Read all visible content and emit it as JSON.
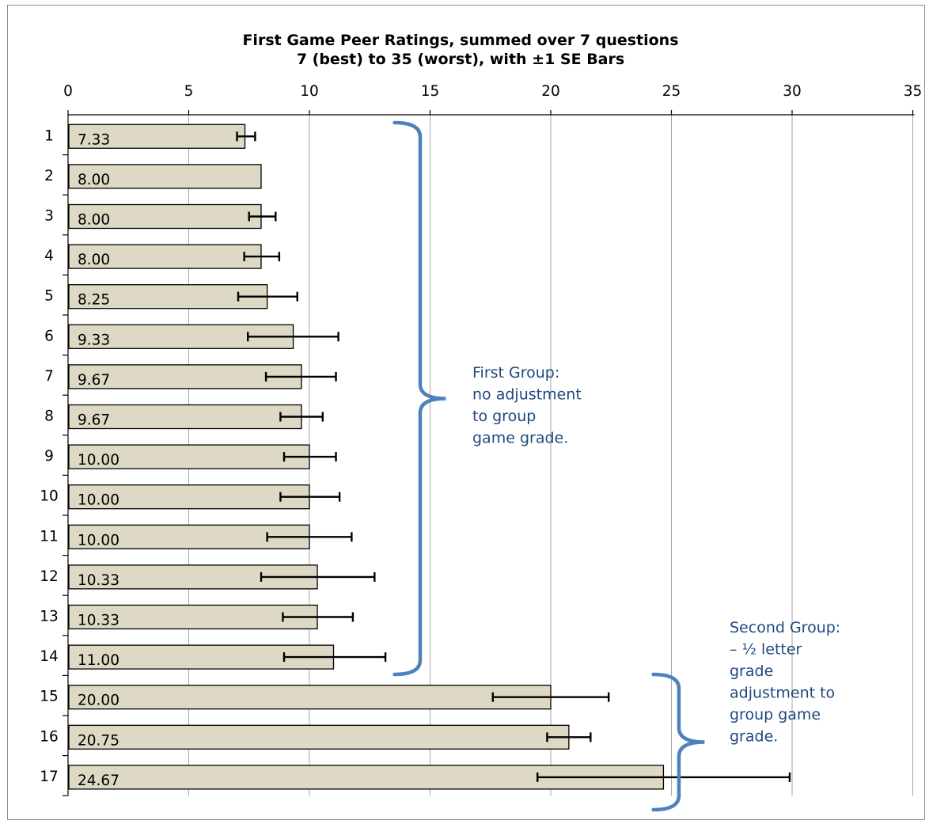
{
  "chart_data": {
    "type": "bar",
    "orientation": "horizontal",
    "title": "First Game Peer Ratings, summed over 7 questions",
    "subtitle": "7 (best) to 35 (worst), with ±1 SE Bars",
    "xlim": [
      0,
      35
    ],
    "xticks": [
      "0",
      "5",
      "10",
      "15",
      "20",
      "25",
      "30",
      "35"
    ],
    "x_axis_position": "top",
    "grid": true,
    "categories": [
      "1",
      "2",
      "3",
      "4",
      "5",
      "6",
      "7",
      "8",
      "9",
      "10",
      "11",
      "12",
      "13",
      "14",
      "15",
      "16",
      "17"
    ],
    "values": [
      7.33,
      8.0,
      8.0,
      8.0,
      8.25,
      9.33,
      9.67,
      9.67,
      10.0,
      10.0,
      10.0,
      10.33,
      10.33,
      11.0,
      20.0,
      20.75,
      24.67
    ],
    "value_labels": [
      "7.33",
      "8.00",
      "8.00",
      "8.00",
      "8.25",
      "9.33",
      "9.67",
      "9.67",
      "10.00",
      "10.00",
      "10.00",
      "10.33",
      "10.33",
      "11.00",
      "20.00",
      "20.75",
      "24.67"
    ],
    "error_bars": [
      [
        7.0,
        7.75
      ],
      null,
      [
        7.5,
        8.6
      ],
      [
        7.3,
        8.75
      ],
      [
        7.05,
        9.5
      ],
      [
        7.45,
        11.2
      ],
      [
        8.2,
        11.1
      ],
      [
        8.8,
        10.55
      ],
      [
        8.95,
        11.1
      ],
      [
        8.8,
        11.25
      ],
      [
        8.25,
        11.75
      ],
      [
        8.0,
        12.7
      ],
      [
        8.9,
        11.8
      ],
      [
        8.95,
        13.15
      ],
      [
        17.6,
        22.4
      ],
      [
        19.85,
        21.65
      ],
      [
        19.45,
        29.9
      ]
    ],
    "colors": {
      "bar_fill": "#ddd9c4",
      "bar_stroke": "#000000",
      "bracket": "#4f81bd",
      "annotation": "#1f497d",
      "grid": "#a6a6a6"
    },
    "annotations": [
      {
        "lines": [
          "First Group:",
          "no adjustment",
          "to group",
          "game grade."
        ]
      },
      {
        "lines": [
          "Second Group:",
          "– ½ letter",
          "grade",
          "adjustment to",
          "group game",
          "grade."
        ]
      }
    ]
  }
}
